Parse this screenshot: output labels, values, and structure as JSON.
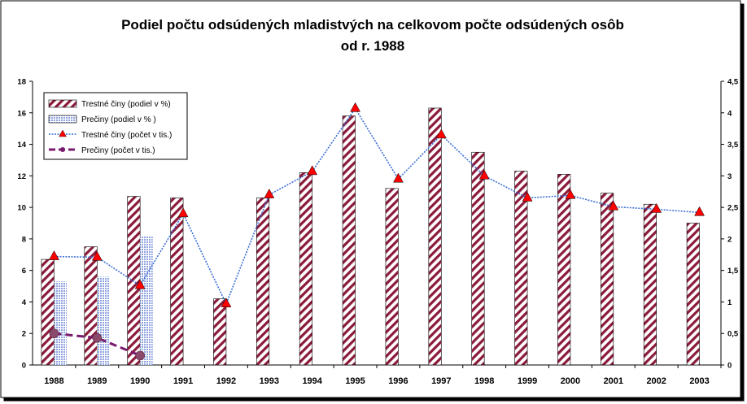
{
  "chart_data": {
    "type": "bar",
    "title_lines": [
      "Podiel počtu odsúdených mladistvých na celkovom počte odsúdených osôb",
      "od r. 1988"
    ],
    "categories": [
      "1988",
      "1989",
      "1990",
      "1991",
      "1992",
      "1993",
      "1994",
      "1995",
      "1996",
      "1997",
      "1998",
      "1999",
      "2000",
      "2001",
      "2002",
      "2003"
    ],
    "y_left": {
      "min": 0,
      "max": 18,
      "step": 2,
      "tick_labels": [
        "0",
        "2",
        "4",
        "6",
        "8",
        "10",
        "12",
        "14",
        "16",
        "18"
      ]
    },
    "y_right": {
      "min": 0,
      "max": 4.5,
      "step": 0.5,
      "tick_labels": [
        "0",
        "0,5",
        "1",
        "1,5",
        "2",
        "2,5",
        "3",
        "3,5",
        "4",
        "4,5"
      ]
    },
    "series": [
      {
        "name": "Trestné činy (podiel v %)",
        "type": "bar",
        "axis": "left",
        "pattern": "diagonal-stripes",
        "color": "#8b1a3a",
        "values": [
          6.7,
          7.5,
          10.7,
          10.6,
          4.2,
          10.6,
          12.2,
          15.8,
          11.2,
          16.3,
          13.5,
          12.3,
          12.1,
          10.9,
          10.2,
          9.0
        ]
      },
      {
        "name": "Prečiny (podiel v % )",
        "type": "bar",
        "axis": "left",
        "pattern": "dotted",
        "color": "#8fa3e0",
        "values": [
          5.3,
          5.6,
          8.2,
          null,
          null,
          null,
          null,
          null,
          null,
          null,
          null,
          null,
          null,
          null,
          null,
          null
        ]
      },
      {
        "name": "Trestné činy (počet v tis.)",
        "type": "line",
        "axis": "right",
        "color": "#3d6fd6",
        "marker": "triangle",
        "marker_color": "#ff0000",
        "values": [
          1.72,
          1.71,
          1.26,
          2.4,
          0.97,
          2.7,
          3.07,
          4.07,
          2.95,
          3.65,
          3.0,
          2.65,
          2.69,
          2.51,
          2.47,
          2.42
        ]
      },
      {
        "name": "Prečiny (počet v tis.)",
        "type": "line",
        "axis": "right",
        "color": "#7a1a6e",
        "marker": "circle",
        "marker_color": "#8b4a6b",
        "values": [
          0.5,
          0.43,
          0.15,
          null,
          null,
          null,
          null,
          null,
          null,
          null,
          null,
          null,
          null,
          null,
          null,
          null
        ]
      }
    ],
    "legend_position": "top-left",
    "grid": false
  }
}
